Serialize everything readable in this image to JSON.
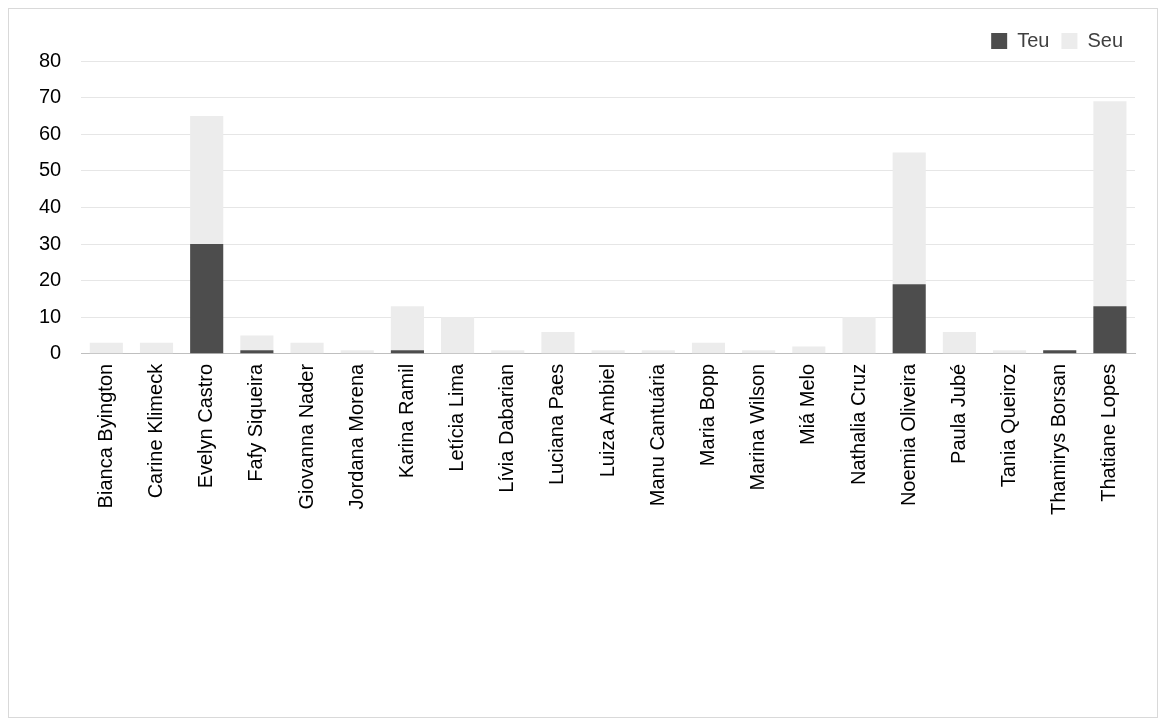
{
  "chart_data": {
    "type": "bar",
    "stacked": true,
    "categories": [
      "Bianca Byington",
      "Carine Klimeck",
      "Evelyn Castro",
      "Fafy Siqueira",
      "Giovanna Nader",
      "Jordana Morena",
      "Karina Ramil",
      "Letícia Lima",
      "Lívia Dabarian",
      "Luciana Paes",
      "Luiza Ambiel",
      "Manu Cantuária",
      "Maria Bopp",
      "Marina Wilson",
      "Miá Melo",
      "Nathalia Cruz",
      "Noemia Oliveira",
      "Paula Jubé",
      "Tania Queiroz",
      "Thamirys Borsan",
      "Thatiane Lopes"
    ],
    "series": [
      {
        "name": "Teu",
        "color": "#4d4d4d",
        "values": [
          0,
          0,
          30,
          1,
          0,
          0,
          1,
          0,
          0,
          0,
          0,
          0,
          0,
          0,
          0,
          0,
          19,
          0,
          0,
          1,
          13
        ]
      },
      {
        "name": "Seu",
        "color": "#ececec",
        "values": [
          3,
          3,
          35,
          4,
          3,
          1,
          12,
          10,
          1,
          6,
          1,
          1,
          3,
          1,
          2,
          10,
          36,
          6,
          1,
          0,
          56
        ]
      }
    ],
    "ylim": [
      0,
      80
    ],
    "yticks": [
      0,
      10,
      20,
      30,
      40,
      50,
      60,
      70,
      80
    ],
    "grid": "y",
    "legend": "top right"
  }
}
